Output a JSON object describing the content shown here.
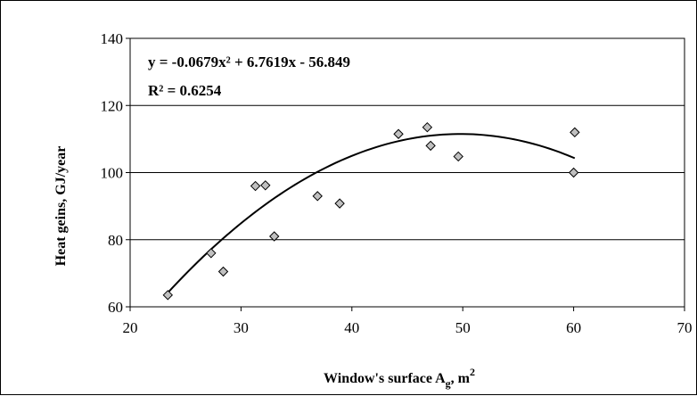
{
  "chart_data": {
    "type": "scatter",
    "x": [
      23.4,
      27.3,
      28.4,
      31.3,
      32.2,
      33.0,
      36.9,
      38.9,
      44.2,
      46.8,
      47.1,
      49.6,
      60.0,
      60.1
    ],
    "y": [
      63.5,
      76.0,
      70.5,
      96.0,
      96.2,
      81.0,
      93.0,
      90.8,
      111.5,
      113.5,
      108.0,
      104.8,
      100.0,
      112.0
    ],
    "trendline": {
      "type": "polynomial",
      "coefficients": [
        -0.0679,
        6.7619,
        -56.849
      ],
      "x_range": [
        23.4,
        60.1
      ],
      "equation_label": "y = -0.0679x² + 6.7619x - 56.849",
      "r2_label": "R² = 0.6254"
    },
    "xlabel": {
      "text": "Window's surface A",
      "sub": "g",
      "suffix": ",  m",
      "sup": "2"
    },
    "ylabel": "Heat geins, GJ/year",
    "xlim": [
      20,
      70
    ],
    "ylim": [
      60,
      140
    ],
    "xticks": [
      "20",
      "30",
      "40",
      "50",
      "60",
      "70"
    ],
    "yticks": [
      "60",
      "80",
      "100",
      "120",
      "140"
    ],
    "grid": "horizontal",
    "legend": "none",
    "colors": {
      "marker_fill": "#c0c0c0",
      "marker_stroke": "#000000",
      "trendline": "#000000",
      "grid": "#000000"
    }
  }
}
